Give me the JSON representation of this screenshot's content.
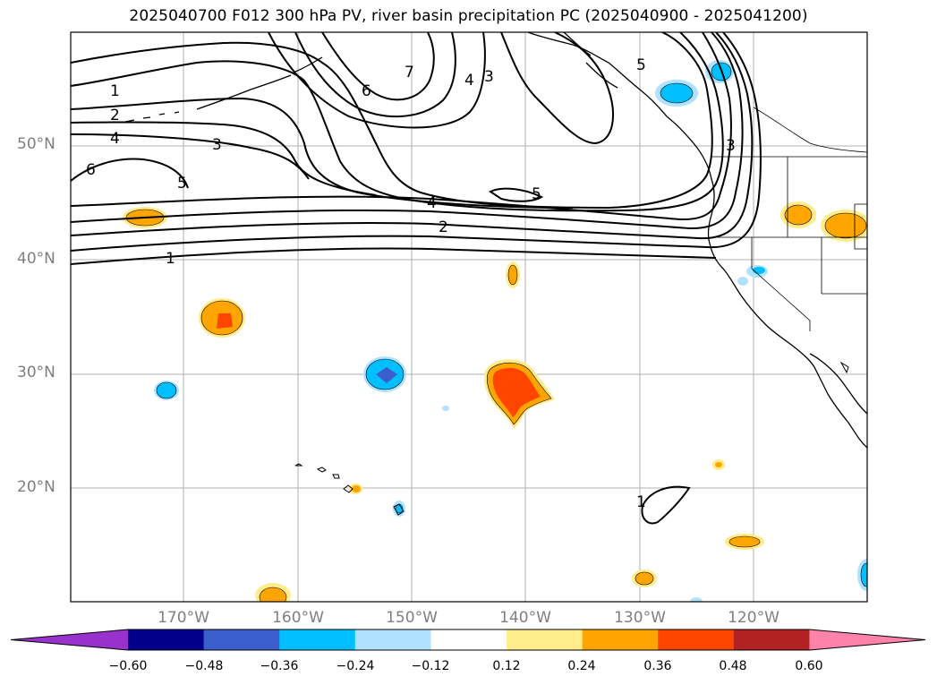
{
  "title": "2025040700 F012 300 hPa PV, river basin precipitation PC (2025040900 - 2025041200)",
  "map": {
    "projection": "plate-carree",
    "lon_range": [
      -180,
      -110
    ],
    "lat_range": [
      10,
      60
    ],
    "lat_ticks": [
      {
        "value": 50,
        "label": "50°N"
      },
      {
        "value": 40,
        "label": "40°N"
      },
      {
        "value": 30,
        "label": "30°N"
      },
      {
        "value": 20,
        "label": "20°N"
      }
    ],
    "lon_ticks": [
      {
        "value": -170,
        "label": "170°W"
      },
      {
        "value": -160,
        "label": "160°W"
      },
      {
        "value": -150,
        "label": "150°W"
      },
      {
        "value": -140,
        "label": "140°W"
      },
      {
        "value": -130,
        "label": "130°W"
      },
      {
        "value": -120,
        "label": "120°W"
      }
    ],
    "grid": true,
    "contour_labels": [
      "1",
      "2",
      "4",
      "3",
      "5",
      "6",
      "4",
      "2",
      "1",
      "5",
      "6",
      "7",
      "4",
      "3",
      "5",
      "3",
      "1"
    ]
  },
  "colorbar": {
    "colors": [
      "#9932cc",
      "#00008b",
      "#3a5fcd",
      "#00bfff",
      "#b0e2ff",
      "#ffffff",
      "#ffec8b",
      "#ffa500",
      "#ff4500",
      "#b22222",
      "#ff82ab"
    ],
    "ticks": [
      "−0.60",
      "−0.48",
      "−0.36",
      "−0.24",
      "−0.12",
      "0.12",
      "0.24",
      "0.36",
      "0.48",
      "0.60"
    ],
    "extend": "both"
  }
}
